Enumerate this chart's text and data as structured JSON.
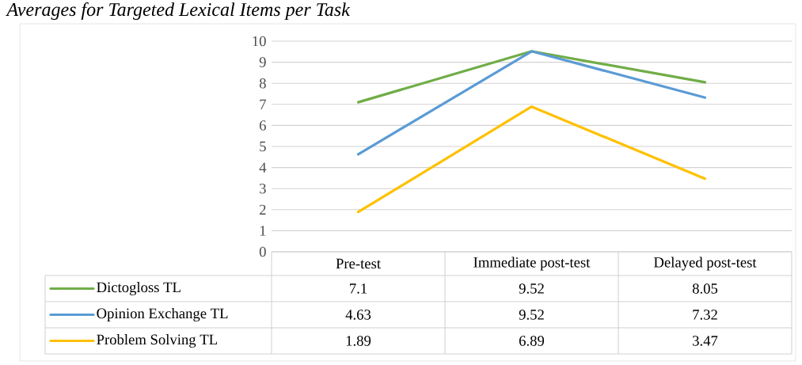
{
  "chart_data": {
    "type": "line",
    "title": "Averages for Targeted Lexical Items per Task",
    "categories": [
      "Pre-test",
      "Immediate post-test",
      "Delayed post-test"
    ],
    "series": [
      {
        "name": "Dictogloss TL",
        "color": "#70ad47",
        "values": [
          7.1,
          9.52,
          8.05
        ]
      },
      {
        "name": "Opinion Exchange TL",
        "color": "#5b9bd5",
        "values": [
          4.63,
          9.52,
          7.32
        ]
      },
      {
        "name": "Problem Solving TL",
        "color": "#ffc000",
        "values": [
          1.89,
          6.89,
          3.47
        ]
      }
    ],
    "ylim": [
      0,
      10
    ],
    "yticks": [
      0,
      1,
      2,
      3,
      4,
      5,
      6,
      7,
      8,
      9,
      10
    ],
    "grid": "y",
    "legend": "bottom",
    "data_labels": true,
    "marker": "none",
    "line_style": "solid"
  }
}
